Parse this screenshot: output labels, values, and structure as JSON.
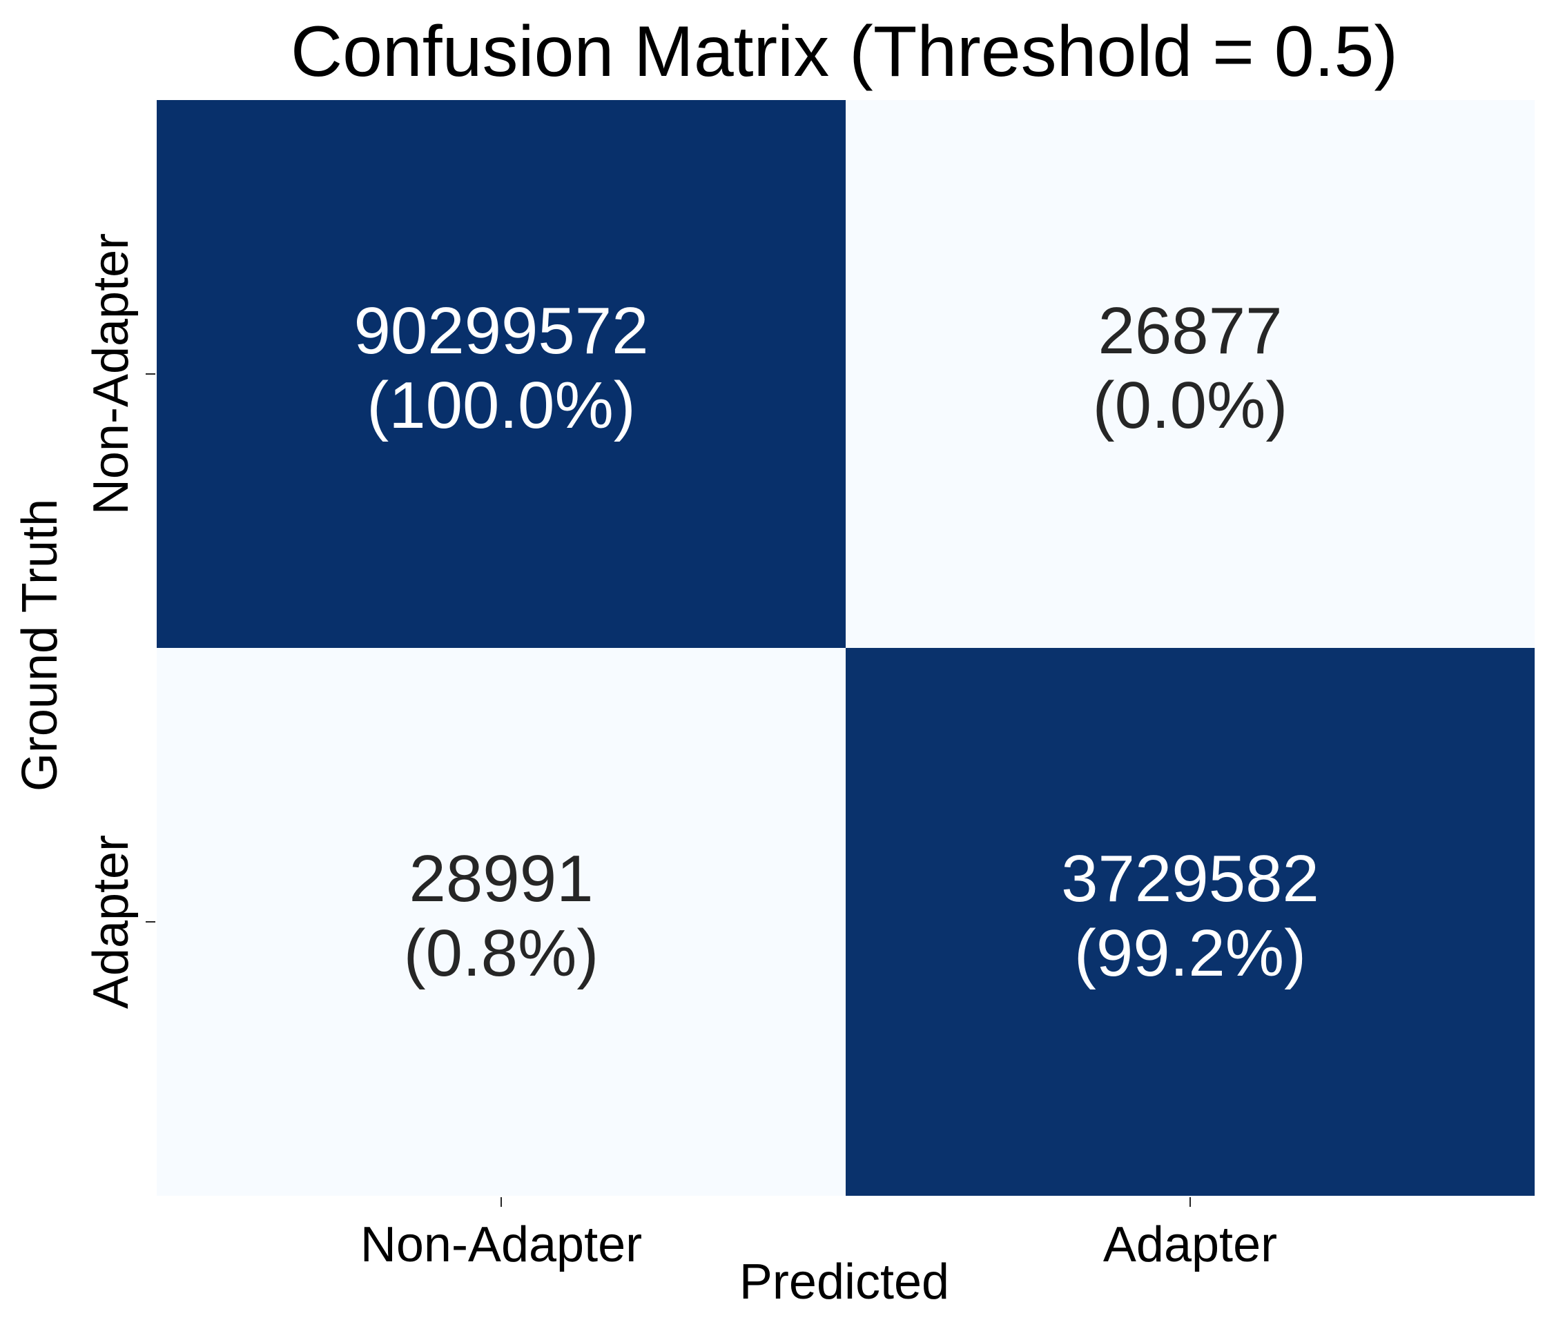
{
  "chart_data": {
    "type": "heatmap",
    "title": "Confusion Matrix (Threshold = 0.5)",
    "xlabel": "Predicted",
    "ylabel": "Ground Truth",
    "x_categories": [
      "Non-Adapter",
      "Adapter"
    ],
    "y_categories": [
      "Non-Adapter",
      "Adapter"
    ],
    "values": [
      [
        90299572,
        26877
      ],
      [
        28991,
        3729582
      ]
    ],
    "cell_labels": [
      [
        "(100.0%)",
        "(0.0%)"
      ],
      [
        "(0.8%)",
        "(99.2%)"
      ]
    ],
    "row_normalized": [
      [
        1.0,
        0.0003
      ],
      [
        0.0077,
        0.9923
      ]
    ],
    "colormap": "Blues",
    "colors": {
      "high": "#08306b",
      "low": "#f7fbff",
      "text_dark": "#262626",
      "text_light": "#ffffff"
    },
    "colorbar": false
  }
}
